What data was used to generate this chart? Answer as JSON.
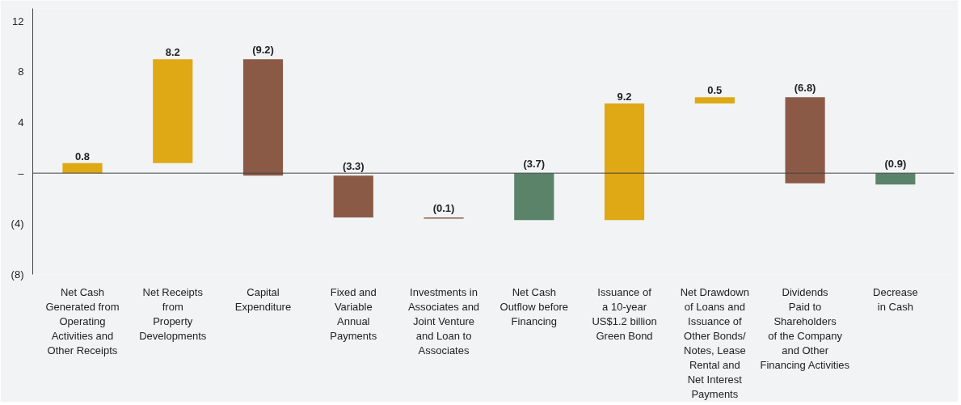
{
  "chart_data": {
    "type": "bar",
    "categories": [
      "Net Cash\nGenerated from\nOperating\nActivities and\nOther Receipts",
      "Net Receipts\nfrom\nProperty\nDevelopments",
      "Capital\nExpenditure",
      "Fixed and\nVariable\nAnnual\nPayments",
      "Investments in\nAssociates and\nJoint Venture\nand Loan to\nAssociates",
      "Net Cash\nOutflow before\nFinancing",
      "Issuance of\na 10-year\nUS$1.2 billion\nGreen Bond",
      "Net Drawdown\nof Loans and\nIssuance of\nOther Bonds/\nNotes, Lease\nRental and\nNet Interest\nPayments",
      "Dividends\nPaid to\nShareholders\nof the Company\nand Other\nFinancing Activities",
      "Decrease\nin Cash"
    ],
    "values": [
      0.8,
      8.2,
      -9.2,
      -3.3,
      -0.1,
      -3.7,
      9.2,
      0.5,
      -6.8,
      -0.9
    ],
    "base": [
      0,
      0.8,
      9.0,
      -0.2,
      -3.5,
      0,
      -3.7,
      5.5,
      6.0,
      0
    ],
    "colors": [
      "#dfa815",
      "#dfa815",
      "#8b5a47",
      "#8b5a47",
      "#8b5a47",
      "#5b836a",
      "#dfa815",
      "#dfa815",
      "#8b5a47",
      "#5b836a"
    ],
    "value_labels": [
      "0.8",
      "8.2",
      "(9.2)",
      "(3.3)",
      "(0.1)",
      "(3.7)",
      "9.2",
      "0.5",
      "(6.8)",
      "(0.9)"
    ],
    "ylim": [
      -8,
      13
    ],
    "yticks": [
      12,
      8,
      4,
      {
        "value": 0,
        "label": "–"
      },
      {
        "value": -4,
        "label": "(4)"
      },
      {
        "value": -8,
        "label": "(8)"
      }
    ],
    "ref_lines": [
      {
        "axis": "y",
        "value": 0,
        "color": "#444444"
      }
    ],
    "grid": false
  }
}
